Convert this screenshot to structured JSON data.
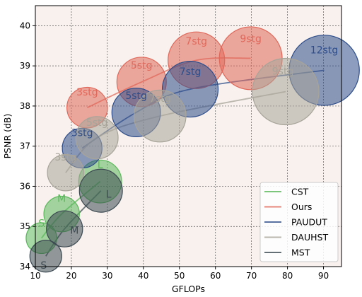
{
  "chart_data": {
    "type": "scatter",
    "xlabel": "GFLOPs",
    "ylabel": "PSNR (dB)",
    "xlim": [
      10,
      95
    ],
    "ylim": [
      34,
      40.5
    ],
    "xticks": [
      "10",
      "20",
      "30",
      "40",
      "50",
      "60",
      "70",
      "80",
      "90"
    ],
    "yticks": [
      "34",
      "35",
      "36",
      "37",
      "38",
      "39",
      "40"
    ],
    "grid": true,
    "legend_position": "lower-right",
    "background_color": "#f8f1ee",
    "series": [
      {
        "name": "CST",
        "color": "#5bb85b",
        "points": [
          {
            "x": 11.7,
            "y": 34.71,
            "label": "S"
          },
          {
            "x": 17.3,
            "y": 35.31,
            "label": "M"
          },
          {
            "x": 28.0,
            "y": 36.12,
            "label": "L"
          }
        ]
      },
      {
        "name": "Ours",
        "color": "#e0685a",
        "points": [
          {
            "x": 24.4,
            "y": 37.96,
            "label": "3stg"
          },
          {
            "x": 39.5,
            "y": 38.6,
            "label": "5stg"
          },
          {
            "x": 54.7,
            "y": 39.14,
            "label": "7stg"
          },
          {
            "x": 69.8,
            "y": 39.19,
            "label": "9stg"
          }
        ]
      },
      {
        "name": "PAUDUT",
        "color": "#2e4d8a",
        "points": [
          {
            "x": 23.0,
            "y": 36.95,
            "label": "3stg"
          },
          {
            "x": 38.0,
            "y": 37.84,
            "label": "5stg"
          },
          {
            "x": 53.0,
            "y": 38.42,
            "label": "7stg"
          },
          {
            "x": 90.2,
            "y": 38.89,
            "label": "12stg"
          }
        ]
      },
      {
        "name": "DAUHST",
        "color": "#a8a499",
        "points": [
          {
            "x": 18.4,
            "y": 36.34,
            "label": "3stg"
          },
          {
            "x": 27.1,
            "y": 37.21,
            "label": "5stg"
          },
          {
            "x": 44.6,
            "y": 37.75,
            "label": "7stg"
          },
          {
            "x": 79.5,
            "y": 38.36,
            "label": "9stg"
          }
        ]
      },
      {
        "name": "MST",
        "color": "#3d4a52",
        "points": [
          {
            "x": 12.9,
            "y": 34.26,
            "label": "S"
          },
          {
            "x": 18.1,
            "y": 34.94,
            "label": "M"
          },
          {
            "x": 28.2,
            "y": 35.89,
            "label": "L"
          }
        ]
      }
    ]
  }
}
